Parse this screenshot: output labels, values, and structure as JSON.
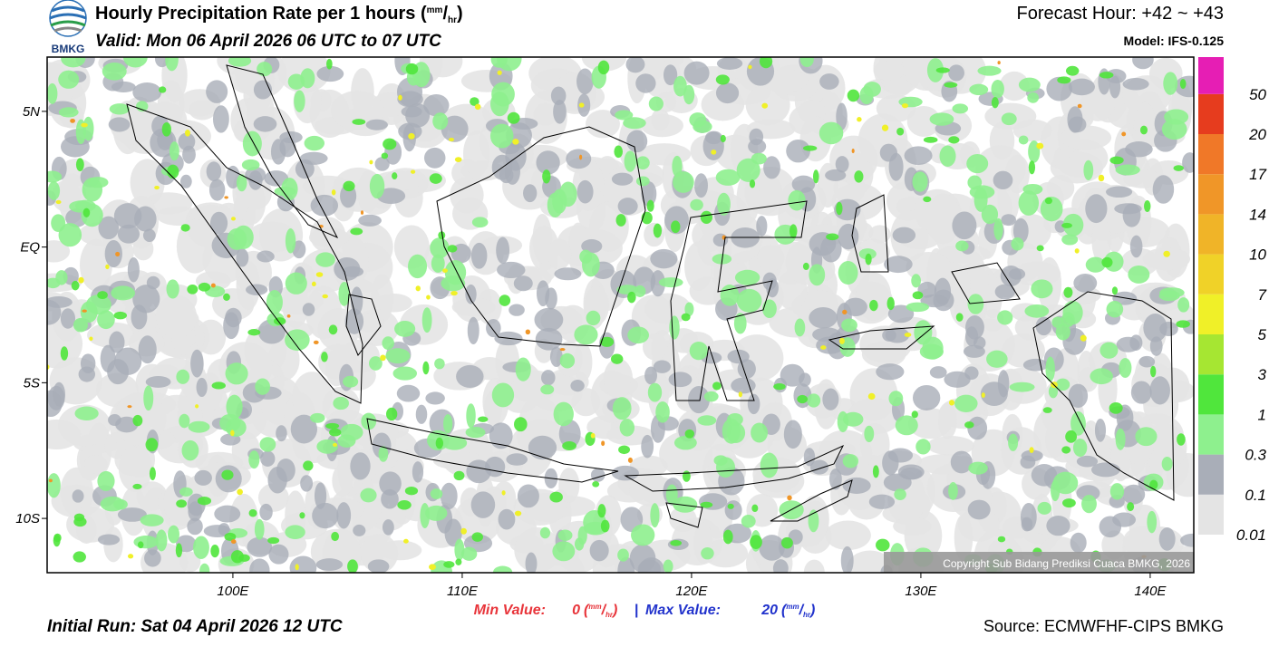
{
  "header": {
    "logo": "BMKG",
    "title": "Hourly Precipitation Rate per 1 hours",
    "unit": {
      "open": "(",
      "num": "mm",
      "sep": "/",
      "den": "hr",
      "close": ")"
    },
    "valid": "Valid: Mon 06 April 2026 06 UTC to 07 UTC",
    "forecast_hour": "Forecast Hour: +42 ~ +43",
    "model": "Model: IFS-0.125"
  },
  "map": {
    "xlim": [
      91.9,
      141.9
    ],
    "ylim": [
      -12,
      7
    ],
    "xticks": [
      {
        "value": 100,
        "label": "100E"
      },
      {
        "value": 110,
        "label": "110E"
      },
      {
        "value": 120,
        "label": "120E"
      },
      {
        "value": 130,
        "label": "130E"
      },
      {
        "value": 140,
        "label": "140E"
      }
    ],
    "yticks": [
      {
        "value": 5,
        "label": "5N"
      },
      {
        "value": 0,
        "label": "EQ"
      },
      {
        "value": -5,
        "label": "5S"
      },
      {
        "value": -10,
        "label": "10S"
      }
    ],
    "copyright": "Copyright Sub Bidang Prediksi Cuaca BMKG, 2026"
  },
  "legend": {
    "levels": [
      0.01,
      0.1,
      0.3,
      1,
      3,
      5,
      7,
      10,
      14,
      17,
      20,
      50
    ],
    "colors": [
      "#e4e4e4",
      "#a9aeb8",
      "#8ef08e",
      "#50e63c",
      "#a6e632",
      "#f0f028",
      "#f0d228",
      "#f0b428",
      "#f09628",
      "#f07828",
      "#e63c1e",
      "#e61eb4"
    ]
  },
  "footer": {
    "min_label": "Min Value:",
    "min_value": 0,
    "separator": "|",
    "max_label": "Max Value:",
    "max_value": 20,
    "initial_run": "Initial Run: Sat 04 April 2026 12 UTC",
    "source": "Source: ECMWFHF-CIPS BMKG"
  }
}
